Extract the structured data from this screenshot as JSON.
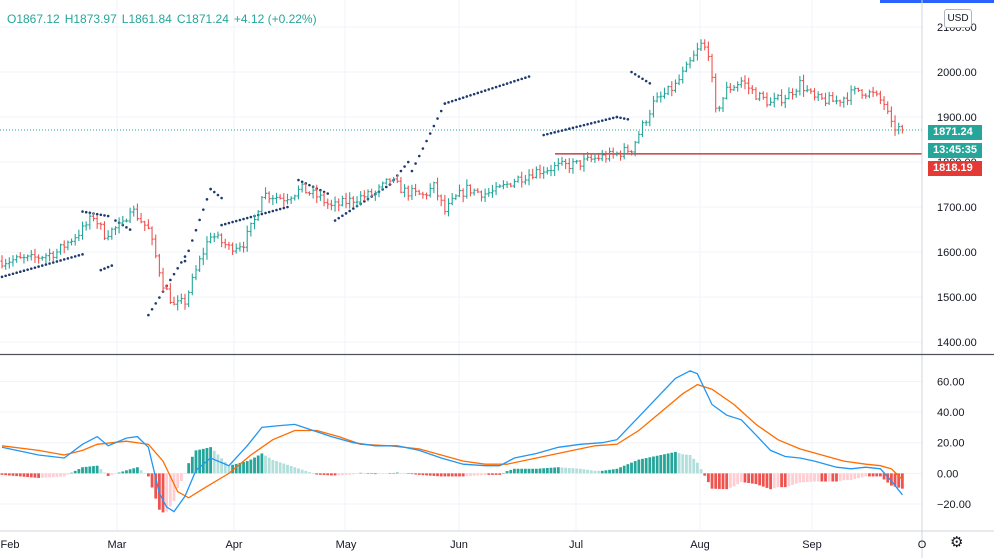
{
  "ohlc": {
    "open": "O1867.12",
    "high": "H1873.97",
    "low": "L1861.84",
    "close": "C1871.24",
    "change": "+4.12 (+0.22%)"
  },
  "currency_button": "USD",
  "price_badge": "1871.24",
  "countdown_badge": "13:45:35",
  "level_badge": "1818.19",
  "colors": {
    "up": "#26a69a",
    "down": "#ef5350",
    "sar": "#1e3a6e",
    "macd_line": "#2196f3",
    "signal_line": "#ff6d00",
    "hist_up_strong": "#26a69a",
    "hist_up_weak": "#b2dfdb",
    "hist_down_strong": "#ef5350",
    "hist_down_weak": "#ffcdd2",
    "level_line": "#b71c1c",
    "accent": "#2962ff"
  },
  "chart_data": {
    "type": "ohlc",
    "price_axis": {
      "ticks": [
        1400,
        1500,
        1600,
        1700,
        1800,
        1900,
        2000,
        2100
      ],
      "tick_labels": [
        "1400.00",
        "1500.00",
        "1600.00",
        "1700.00",
        "1800.00",
        "1900.00",
        "2000.00",
        "2100.00"
      ],
      "range": [
        1378,
        2140
      ]
    },
    "macd_axis": {
      "ticks": [
        -20,
        0,
        20,
        40,
        60
      ],
      "tick_labels": [
        "−20.00",
        "0.00",
        "20.00",
        "40.00",
        "60.00"
      ],
      "range": [
        -37,
        76
      ]
    },
    "x_labels": [
      "Feb",
      "Mar",
      "Apr",
      "May",
      "Jun",
      "Jul",
      "Aug",
      "Sep",
      "O"
    ],
    "horizontal_level": 1818.19,
    "last_price": 1871.24,
    "price_key_points": [
      [
        0,
        1580
      ],
      [
        8,
        1585
      ],
      [
        15,
        1600
      ],
      [
        22,
        1650
      ],
      [
        25,
        1680
      ],
      [
        28,
        1640
      ],
      [
        33,
        1660
      ],
      [
        35,
        1700
      ],
      [
        40,
        1650
      ],
      [
        44,
        1530
      ],
      [
        47,
        1480
      ],
      [
        50,
        1490
      ],
      [
        54,
        1580
      ],
      [
        57,
        1640
      ],
      [
        62,
        1610
      ],
      [
        66,
        1620
      ],
      [
        69,
        1670
      ],
      [
        71,
        1730
      ],
      [
        77,
        1720
      ],
      [
        82,
        1740
      ],
      [
        87,
        1720
      ],
      [
        90,
        1700
      ],
      [
        97,
        1720
      ],
      [
        102,
        1730
      ],
      [
        106,
        1760
      ],
      [
        110,
        1735
      ],
      [
        115,
        1725
      ],
      [
        118,
        1745
      ],
      [
        121,
        1690
      ],
      [
        124,
        1720
      ],
      [
        127,
        1740
      ],
      [
        132,
        1730
      ],
      [
        135,
        1735
      ],
      [
        140,
        1760
      ],
      [
        146,
        1780
      ],
      [
        152,
        1790
      ],
      [
        157,
        1795
      ],
      [
        163,
        1810
      ],
      [
        167,
        1815
      ],
      [
        172,
        1830
      ],
      [
        175,
        1880
      ],
      [
        178,
        1930
      ],
      [
        181,
        1950
      ],
      [
        184,
        1970
      ],
      [
        188,
        2020
      ],
      [
        191,
        2060
      ],
      [
        193,
        2045
      ],
      [
        195,
        1910
      ],
      [
        198,
        1960
      ],
      [
        202,
        1980
      ],
      [
        206,
        1950
      ],
      [
        210,
        1930
      ],
      [
        215,
        1950
      ],
      [
        218,
        1975
      ],
      [
        222,
        1940
      ],
      [
        228,
        1935
      ],
      [
        234,
        1960
      ],
      [
        238,
        1950
      ],
      [
        241,
        1930
      ],
      [
        243,
        1880
      ],
      [
        246,
        1871
      ]
    ],
    "sar_segments": [
      [
        0,
        1545,
        22,
        1595
      ],
      [
        22,
        1690,
        29,
        1680
      ],
      [
        27,
        1560,
        30,
        1570
      ],
      [
        31,
        1670,
        35,
        1650
      ],
      [
        40,
        1460,
        50,
        1590
      ],
      [
        50,
        1580,
        57,
        1740
      ],
      [
        57,
        1740,
        60,
        1720
      ],
      [
        60,
        1660,
        78,
        1700
      ],
      [
        81,
        1760,
        89,
        1730
      ],
      [
        91,
        1670,
        106,
        1750
      ],
      [
        106,
        1750,
        111,
        1800
      ],
      [
        112,
        1780,
        121,
        1930
      ],
      [
        121,
        1930,
        144,
        1990
      ],
      [
        148,
        1860,
        168,
        1900
      ],
      [
        168,
        1900,
        171,
        1895
      ],
      [
        172,
        2000,
        177,
        1975
      ]
    ],
    "macd_points": [
      [
        0,
        17
      ],
      [
        10,
        12
      ],
      [
        17,
        10
      ],
      [
        22,
        19
      ],
      [
        26,
        24
      ],
      [
        29,
        18
      ],
      [
        34,
        23
      ],
      [
        37,
        24
      ],
      [
        40,
        17
      ],
      [
        43,
        -13
      ],
      [
        45,
        -22
      ],
      [
        47,
        -25
      ],
      [
        50,
        -15
      ],
      [
        53,
        2
      ],
      [
        57,
        10
      ],
      [
        62,
        5
      ],
      [
        67,
        18
      ],
      [
        71,
        30
      ],
      [
        75,
        31
      ],
      [
        80,
        32
      ],
      [
        85,
        28
      ],
      [
        90,
        24
      ],
      [
        96,
        20
      ],
      [
        102,
        18
      ],
      [
        108,
        18
      ],
      [
        114,
        15
      ],
      [
        120,
        10
      ],
      [
        126,
        6
      ],
      [
        132,
        5
      ],
      [
        136,
        5
      ],
      [
        140,
        10
      ],
      [
        146,
        13
      ],
      [
        152,
        17
      ],
      [
        158,
        19
      ],
      [
        164,
        20
      ],
      [
        168,
        22
      ],
      [
        172,
        32
      ],
      [
        176,
        42
      ],
      [
        180,
        52
      ],
      [
        184,
        62
      ],
      [
        188,
        67
      ],
      [
        190,
        65
      ],
      [
        194,
        45
      ],
      [
        198,
        38
      ],
      [
        202,
        35
      ],
      [
        206,
        25
      ],
      [
        210,
        15
      ],
      [
        214,
        11
      ],
      [
        218,
        10
      ],
      [
        222,
        8
      ],
      [
        228,
        4
      ],
      [
        232,
        3
      ],
      [
        236,
        4
      ],
      [
        240,
        3
      ],
      [
        243,
        -5
      ],
      [
        246,
        -14
      ]
    ],
    "signal_points": [
      [
        0,
        18
      ],
      [
        10,
        15
      ],
      [
        17,
        12
      ],
      [
        22,
        15
      ],
      [
        26,
        19
      ],
      [
        34,
        21
      ],
      [
        40,
        19
      ],
      [
        44,
        8
      ],
      [
        48,
        -12
      ],
      [
        51,
        -16
      ],
      [
        55,
        -10
      ],
      [
        62,
        0
      ],
      [
        68,
        12
      ],
      [
        74,
        22
      ],
      [
        80,
        28
      ],
      [
        86,
        28
      ],
      [
        92,
        24
      ],
      [
        98,
        19
      ],
      [
        106,
        18
      ],
      [
        114,
        16
      ],
      [
        120,
        12
      ],
      [
        126,
        8
      ],
      [
        132,
        6
      ],
      [
        138,
        6
      ],
      [
        146,
        10
      ],
      [
        154,
        14
      ],
      [
        162,
        18
      ],
      [
        168,
        19
      ],
      [
        174,
        28
      ],
      [
        180,
        40
      ],
      [
        186,
        52
      ],
      [
        190,
        58
      ],
      [
        194,
        55
      ],
      [
        200,
        45
      ],
      [
        206,
        32
      ],
      [
        212,
        22
      ],
      [
        218,
        16
      ],
      [
        224,
        12
      ],
      [
        230,
        8
      ],
      [
        236,
        6
      ],
      [
        240,
        5
      ],
      [
        243,
        3
      ],
      [
        246,
        -4
      ]
    ]
  }
}
